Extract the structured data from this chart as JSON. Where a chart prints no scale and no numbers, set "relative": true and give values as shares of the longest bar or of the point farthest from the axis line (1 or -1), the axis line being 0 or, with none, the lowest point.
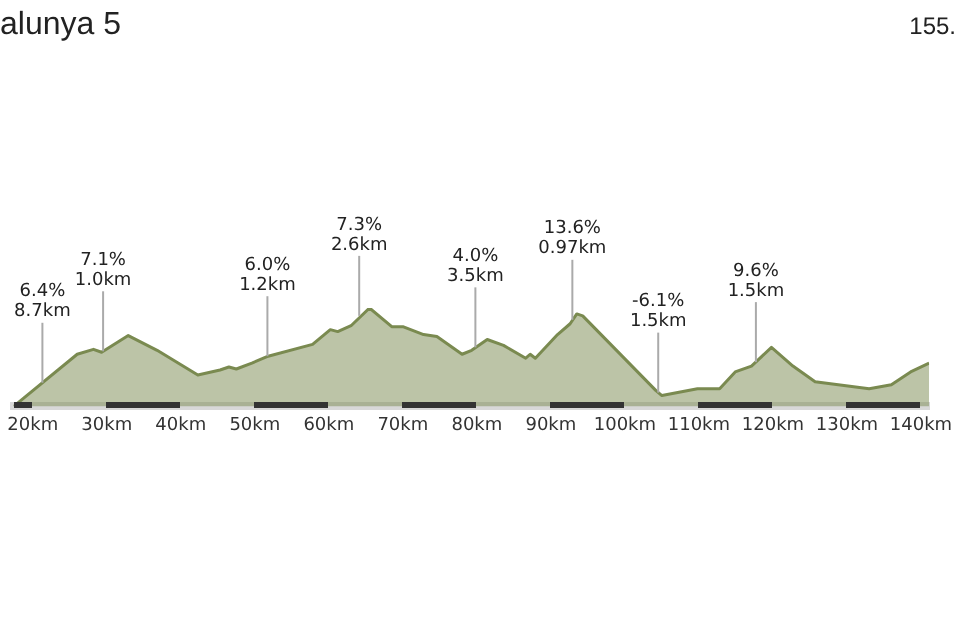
{
  "chart_data": {
    "type": "area",
    "title": "alunya 5",
    "relative": true,
    "legend": false,
    "grid": false,
    "marker": "none",
    "x": [
      17.4,
      26.0,
      28.2,
      29.3,
      32.9,
      36.8,
      42.3,
      45.3,
      46.5,
      47.5,
      49.6,
      51.8,
      57.8,
      60.2,
      61.2,
      63.0,
      65.5,
      68.5,
      70.0,
      72.8,
      74.6,
      78.0,
      79.3,
      81.4,
      83.6,
      86.6,
      87.2,
      87.9,
      90.9,
      92.6,
      93.5,
      94.3,
      104.2,
      105.0,
      109.8,
      112.8,
      114.9,
      117.1,
      119.8,
      122.7,
      125.7,
      133.0,
      136.0,
      138.6,
      141.1
    ],
    "xlim": [
      17.4,
      141.1
    ],
    "xticks": [
      {
        "value": 20,
        "label": "20km"
      },
      {
        "value": 30,
        "label": "30km"
      },
      {
        "value": 40,
        "label": "40km"
      },
      {
        "value": 50,
        "label": "50km"
      },
      {
        "value": 60,
        "label": "60km"
      },
      {
        "value": 70,
        "label": "70km"
      },
      {
        "value": 80,
        "label": "80km"
      },
      {
        "value": 90,
        "label": "90km"
      },
      {
        "value": 100,
        "label": "100km"
      },
      {
        "value": 110,
        "label": "110km"
      },
      {
        "value": 120,
        "label": "120km"
      },
      {
        "value": 130,
        "label": "130km"
      },
      {
        "value": 140,
        "label": "140km"
      }
    ],
    "series": [
      {
        "color": "#7a8a50",
        "values": [
          0,
          0.53,
          0.58,
          0.55,
          0.72,
          0.57,
          0.32,
          0.37,
          0.4,
          0.38,
          0.44,
          0.51,
          0.63,
          0.78,
          0.76,
          0.82,
          1,
          0.81,
          0.81,
          0.73,
          0.71,
          0.53,
          0.57,
          0.68,
          0.62,
          0.49,
          0.53,
          0.49,
          0.73,
          0.84,
          0.94,
          0.92,
          0.16,
          0.11,
          0.18,
          0.18,
          0.35,
          0.41,
          0.6,
          0.41,
          0.25,
          0.18,
          0.22,
          0.35,
          0.44
        ],
        "name": null
      }
    ],
    "annotations": [
      "155.",
      {
        "text": "6.4%\n8.7km",
        "x": 21.3,
        "y": 0.24
      },
      {
        "text": "7.1%\n1.0km",
        "x": 29.5,
        "y": 0.56
      },
      {
        "text": "6.0%\n1.2km",
        "x": 51.7,
        "y": 0.51
      },
      {
        "text": "7.3%\n2.6km",
        "x": 64.1,
        "y": 0.92
      },
      {
        "text": "4.0%\n3.5km",
        "x": 79.8,
        "y": 0.6
      },
      {
        "text": "13.6%\n0.97km",
        "x": 92.9,
        "y": 0.88
      },
      {
        "text": "-6.1%\n1.5km",
        "x": 104.5,
        "y": 0.14
      },
      {
        "text": "9.6%\n1.5km",
        "x": 117.7,
        "y": 0.45
      }
    ]
  }
}
